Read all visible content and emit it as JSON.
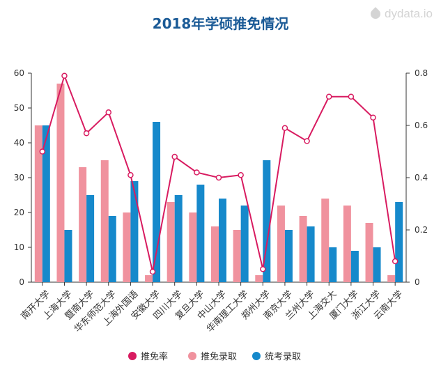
{
  "title": "2018年学硕推免情况",
  "watermark": "dydata.io",
  "chart_data": {
    "type": "bar",
    "title": "2018年学硕推免情况",
    "categories": [
      "南开大学",
      "上海大学",
      "暨南大学",
      "华东师范大学",
      "上海外国语",
      "安徽大学",
      "四川大学",
      "复旦大学",
      "中山大学",
      "华南理工大学",
      "郑州大学",
      "南京大学",
      "兰州大学",
      "上海交大",
      "厦门大学",
      "浙江大学",
      "云南大学"
    ],
    "series": [
      {
        "name": "推免录取",
        "type": "bar",
        "axis": "left",
        "color": "#f0929e",
        "values": [
          45,
          57,
          33,
          35,
          20,
          2,
          23,
          20,
          16,
          15,
          2,
          22,
          19,
          24,
          22,
          17,
          2
        ]
      },
      {
        "name": "统考录取",
        "type": "bar",
        "axis": "left",
        "color": "#1689cb",
        "values": [
          45,
          15,
          25,
          19,
          29,
          46,
          25,
          28,
          24,
          22,
          35,
          15,
          16,
          10,
          9,
          10,
          23
        ]
      },
      {
        "name": "推免率",
        "type": "line",
        "axis": "right",
        "color": "#d81b60",
        "values": [
          0.5,
          0.79,
          0.57,
          0.65,
          0.41,
          0.04,
          0.48,
          0.42,
          0.4,
          0.41,
          0.05,
          0.59,
          0.54,
          0.71,
          0.71,
          0.63,
          0.08
        ]
      }
    ],
    "ylim_left": [
      0,
      60
    ],
    "yticks_left": [
      "0",
      "10",
      "20",
      "30",
      "40",
      "50",
      "60"
    ],
    "ylim_right": [
      0,
      0.8
    ],
    "yticks_right": [
      "0",
      "0.2",
      "0.4",
      "0.6",
      "0.8"
    ],
    "legend_position": "bottom",
    "grid": false
  }
}
